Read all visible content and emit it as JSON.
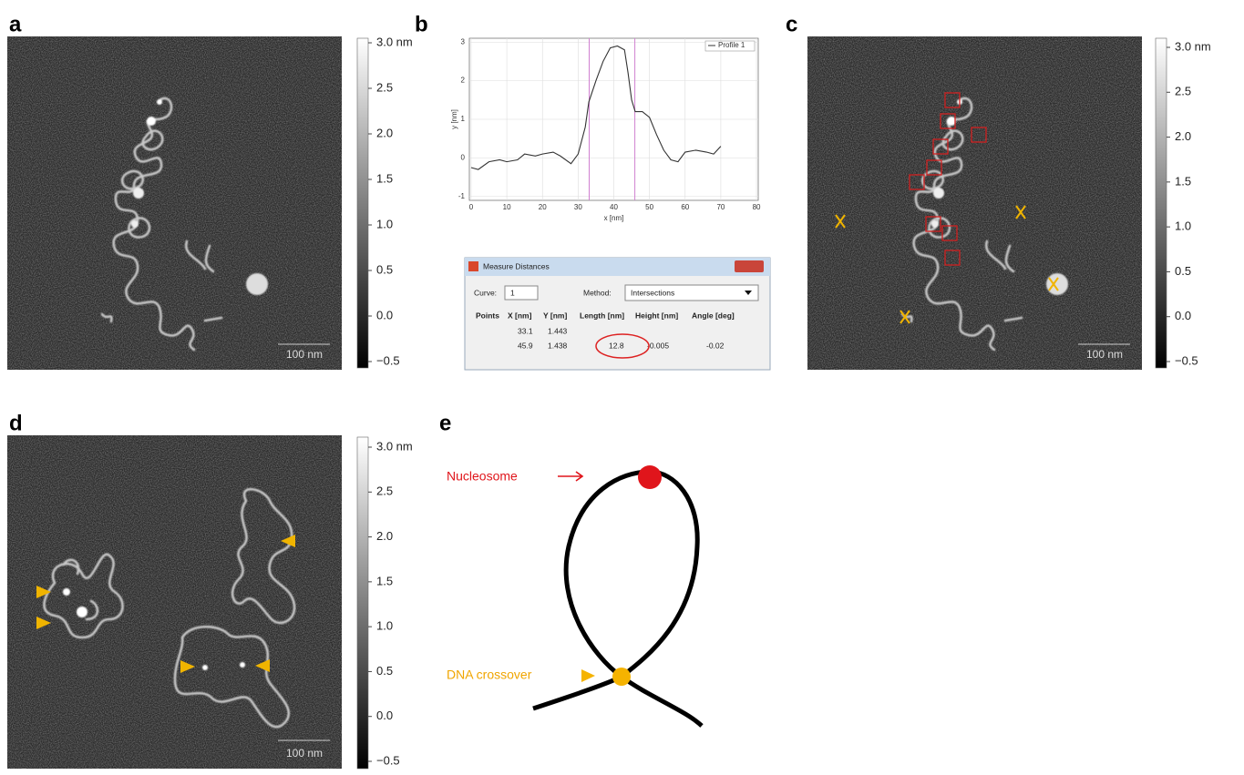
{
  "panel_labels": [
    "a",
    "b",
    "c",
    "d",
    "e"
  ],
  "scale_bar": "100 nm",
  "colorbar": {
    "lim": [
      -0.5,
      3
    ],
    "ticks": [
      {
        "value": 3,
        "label": "3.0 nm"
      },
      2.5,
      {
        "value": 2,
        "label": "2.0"
      },
      1.5,
      {
        "value": 1,
        "label": "1.0"
      },
      0.5,
      {
        "value": 0,
        "label": "0.0"
      },
      {
        "value": -0.5,
        "label": "−0.5"
      }
    ]
  },
  "chart_data": {
    "type": "line",
    "xlabel": "x [nm]",
    "ylabel": "y [nm]",
    "x": [
      0,
      2,
      5,
      8,
      10,
      13,
      15,
      18,
      20,
      23,
      25,
      28,
      30,
      32,
      33,
      35,
      37,
      39,
      41,
      43,
      44,
      45,
      46,
      48,
      50,
      52,
      54,
      56,
      58,
      60,
      63,
      66,
      68,
      70
    ],
    "series": [
      {
        "name": "Profile 1",
        "color": "#333333",
        "values": [
          -0.25,
          -0.3,
          -0.1,
          -0.05,
          -0.1,
          -0.05,
          0.1,
          0.05,
          0.1,
          0.15,
          0.05,
          -0.15,
          0.1,
          0.8,
          1.45,
          2.0,
          2.5,
          2.85,
          2.9,
          2.8,
          2.2,
          1.5,
          1.2,
          1.2,
          1.05,
          0.6,
          0.2,
          -0.05,
          -0.1,
          0.15,
          0.2,
          0.15,
          0.1,
          0.3
        ]
      }
    ],
    "xlim": [
      -0.5,
      80.5
    ],
    "ylim": [
      -1.1,
      3.1
    ],
    "xticks": [
      0,
      10,
      20,
      30,
      40,
      50,
      60,
      70,
      80
    ],
    "yticks": [
      -1,
      0,
      1,
      2,
      3
    ],
    "markers": [
      33.1,
      45.9
    ],
    "marker_color": "#d080d0",
    "grid": true,
    "legend": "upper right"
  },
  "dialog": {
    "title": "Measure Distances",
    "curve_label": "Curve:",
    "curve_value": "1",
    "method_label": "Method:",
    "method_value": "Intersections",
    "headers": [
      "Points",
      "X [nm]",
      "Y [nm]",
      "Length [nm]",
      "Height [nm]",
      "Angle [deg]"
    ],
    "rows": [
      [
        "33.1",
        "1.443"
      ],
      [
        "45.9",
        "1.438",
        "12.8",
        "-0.005",
        "-0.02"
      ]
    ]
  },
  "schematic": {
    "nucleosome": "Nucleosome",
    "crossover": "DNA crossover"
  }
}
